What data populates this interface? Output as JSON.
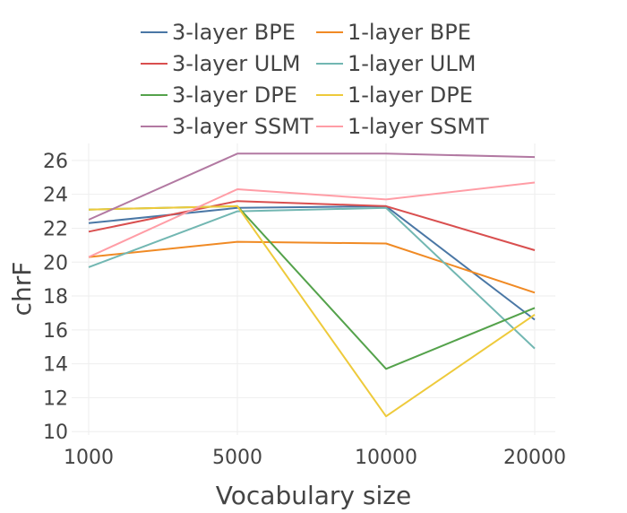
{
  "chart_data": {
    "type": "line",
    "title": "",
    "xlabel": "Vocabulary size",
    "ylabel": "chrF",
    "x": [
      "1000",
      "5000",
      "10000",
      "20000"
    ],
    "ylim": [
      9.8,
      27
    ],
    "yticks": [
      10,
      12,
      14,
      16,
      18,
      20,
      22,
      24,
      26
    ],
    "grid": true,
    "legend_position": "top",
    "series": [
      {
        "name": "3-layer BPE",
        "color": "#4a77a5",
        "values": [
          22.3,
          23.2,
          23.3,
          16.6
        ]
      },
      {
        "name": "1-layer BPE",
        "color": "#f08a24",
        "values": [
          20.3,
          21.2,
          21.1,
          18.2
        ]
      },
      {
        "name": "3-layer ULM",
        "color": "#d94f4f",
        "values": [
          21.8,
          23.6,
          23.3,
          20.7
        ]
      },
      {
        "name": "1-layer ULM",
        "color": "#72b7b2",
        "values": [
          19.7,
          23.0,
          23.2,
          14.9
        ]
      },
      {
        "name": "3-layer DPE",
        "color": "#54a24b",
        "values": [
          23.1,
          23.3,
          13.7,
          17.3
        ]
      },
      {
        "name": "1-layer DPE",
        "color": "#eeca3b",
        "values": [
          23.1,
          23.3,
          10.9,
          16.9
        ]
      },
      {
        "name": "3-layer SSMT",
        "color": "#b279a2",
        "values": [
          22.5,
          26.4,
          26.4,
          26.2
        ]
      },
      {
        "name": "1-layer SSMT",
        "color": "#ff9da6",
        "values": [
          20.3,
          24.3,
          23.7,
          24.7
        ]
      }
    ]
  }
}
